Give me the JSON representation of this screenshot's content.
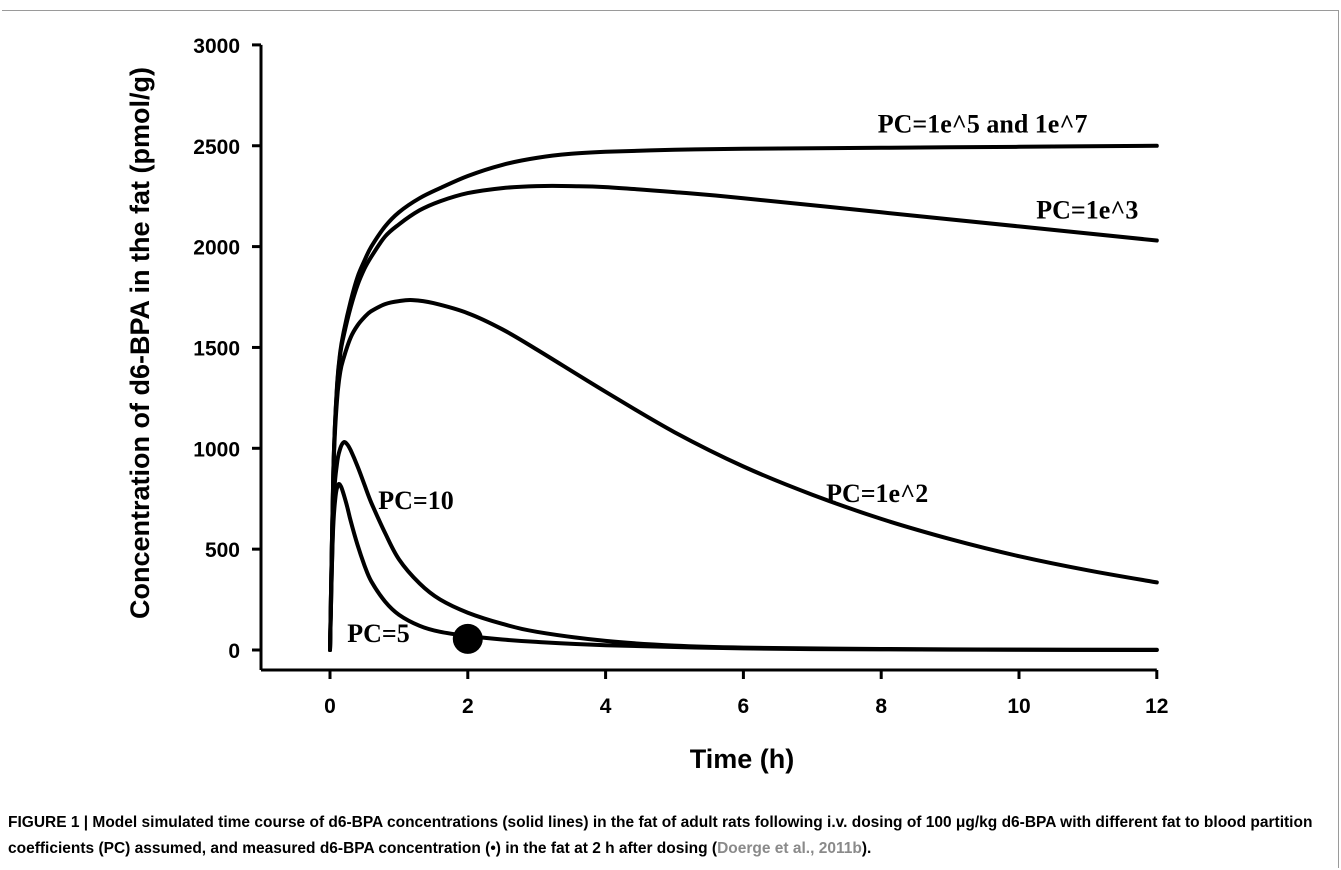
{
  "chart_data": {
    "type": "line",
    "xlabel": "Time (h)",
    "ylabel": "Concentration of d6-BPA in the fat (pmol/g)",
    "xlim": [
      -1,
      12
    ],
    "ylim": [
      -100,
      3000
    ],
    "xticks": [
      0,
      2,
      4,
      6,
      8,
      10,
      12
    ],
    "yticks": [
      0,
      500,
      1000,
      1500,
      2000,
      2500,
      3000
    ],
    "grid": false,
    "series": [
      {
        "name": "PC=1e^5 and 1e^7",
        "x": [
          0,
          0.05,
          0.1,
          0.15,
          0.2,
          0.3,
          0.4,
          0.5,
          0.6,
          0.8,
          1.0,
          1.3,
          1.6,
          2.0,
          2.5,
          3.0,
          3.5,
          4.0,
          5.0,
          6.0,
          8.0,
          10.0,
          12.0
        ],
        "y": [
          0,
          900,
          1300,
          1480,
          1580,
          1730,
          1850,
          1930,
          2000,
          2100,
          2170,
          2240,
          2290,
          2350,
          2405,
          2440,
          2460,
          2470,
          2480,
          2485,
          2490,
          2495,
          2500
        ]
      },
      {
        "name": "PC=1e^3",
        "x": [
          0,
          0.05,
          0.1,
          0.15,
          0.2,
          0.3,
          0.4,
          0.5,
          0.6,
          0.8,
          1.0,
          1.3,
          1.6,
          2.0,
          2.5,
          3.0,
          3.5,
          4.0,
          5.0,
          6.0,
          8.0,
          10.0,
          12.0
        ],
        "y": [
          0,
          900,
          1290,
          1470,
          1560,
          1700,
          1810,
          1890,
          1950,
          2050,
          2110,
          2180,
          2225,
          2265,
          2290,
          2300,
          2300,
          2295,
          2270,
          2240,
          2170,
          2100,
          2030
        ]
      },
      {
        "name": "PC=1e^2",
        "x": [
          0,
          0.05,
          0.1,
          0.15,
          0.2,
          0.3,
          0.4,
          0.5,
          0.6,
          0.8,
          1.0,
          1.2,
          1.5,
          2.0,
          2.5,
          3.0,
          4.0,
          5.0,
          6.0,
          7.0,
          8.0,
          9.0,
          10.0,
          11.0,
          12.0
        ],
        "y": [
          0,
          880,
          1230,
          1380,
          1450,
          1550,
          1610,
          1650,
          1680,
          1715,
          1730,
          1735,
          1720,
          1670,
          1590,
          1490,
          1280,
          1080,
          910,
          770,
          650,
          550,
          465,
          395,
          335
        ]
      },
      {
        "name": "PC=10",
        "x": [
          0,
          0.05,
          0.1,
          0.15,
          0.2,
          0.25,
          0.3,
          0.4,
          0.5,
          0.6,
          0.8,
          1.0,
          1.3,
          1.6,
          2.0,
          2.5,
          3.0,
          4.0,
          5.0,
          6.0,
          8.0,
          10.0,
          12.0
        ],
        "y": [
          0,
          700,
          920,
          1000,
          1030,
          1020,
          990,
          910,
          820,
          730,
          580,
          450,
          330,
          250,
          185,
          130,
          90,
          45,
          22,
          12,
          5,
          2,
          1
        ]
      },
      {
        "name": "PC=5",
        "x": [
          0,
          0.04,
          0.08,
          0.12,
          0.16,
          0.2,
          0.25,
          0.3,
          0.4,
          0.5,
          0.6,
          0.8,
          1.0,
          1.3,
          1.6,
          2.0,
          2.5,
          3.0,
          4.0,
          6.0,
          8.0,
          10.0,
          12.0
        ],
        "y": [
          0,
          560,
          760,
          820,
          810,
          770,
          710,
          640,
          520,
          420,
          340,
          240,
          175,
          120,
          90,
          70,
          52,
          40,
          24,
          8,
          3,
          1,
          0
        ]
      }
    ],
    "measured": [
      {
        "x": 2,
        "y": 55
      }
    ],
    "annotations": [
      {
        "text": "PC=1e^5 and 1e^7",
        "x": 7.95,
        "y": 2565
      },
      {
        "text": "PC=1e^3",
        "x": 10.25,
        "y": 2140
      },
      {
        "text": "PC=1e^2",
        "x": 7.2,
        "y": 735
      },
      {
        "text": "PC=10",
        "x": 0.7,
        "y": 700
      },
      {
        "text": "PC=5",
        "x": 0.25,
        "y": 40
      }
    ]
  },
  "caption": {
    "main": "FIGURE 1 | Model simulated time course of d6-BPA concentrations (solid lines) in the fat of adult rats following i.v. dosing of 100 μg/kg d6-BPA with different fat to blood partition coefficients (PC) assumed, and measured d6-BPA concentration (•) in the fat at 2 h after dosing (",
    "ref": "Doerge et al., 2011b",
    "end": ")."
  }
}
